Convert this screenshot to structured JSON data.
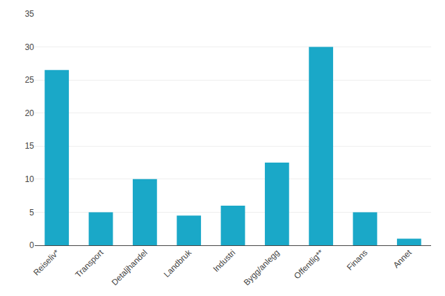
{
  "chart_data": {
    "type": "bar",
    "categories": [
      "Reiseliv*",
      "Transport",
      "Detaljhandel",
      "Landbruk",
      "Industri",
      "Bygg/anlegg",
      "Offentlig**",
      "Finans",
      "Annet"
    ],
    "values": [
      26.5,
      5.0,
      10.0,
      4.5,
      6.0,
      12.5,
      30.0,
      5.0,
      1.0
    ],
    "color": "#1aa8c8",
    "ylim": [
      0,
      35
    ],
    "yticks": [
      0,
      5,
      10,
      15,
      20,
      25,
      30,
      35
    ],
    "grid": true
  }
}
